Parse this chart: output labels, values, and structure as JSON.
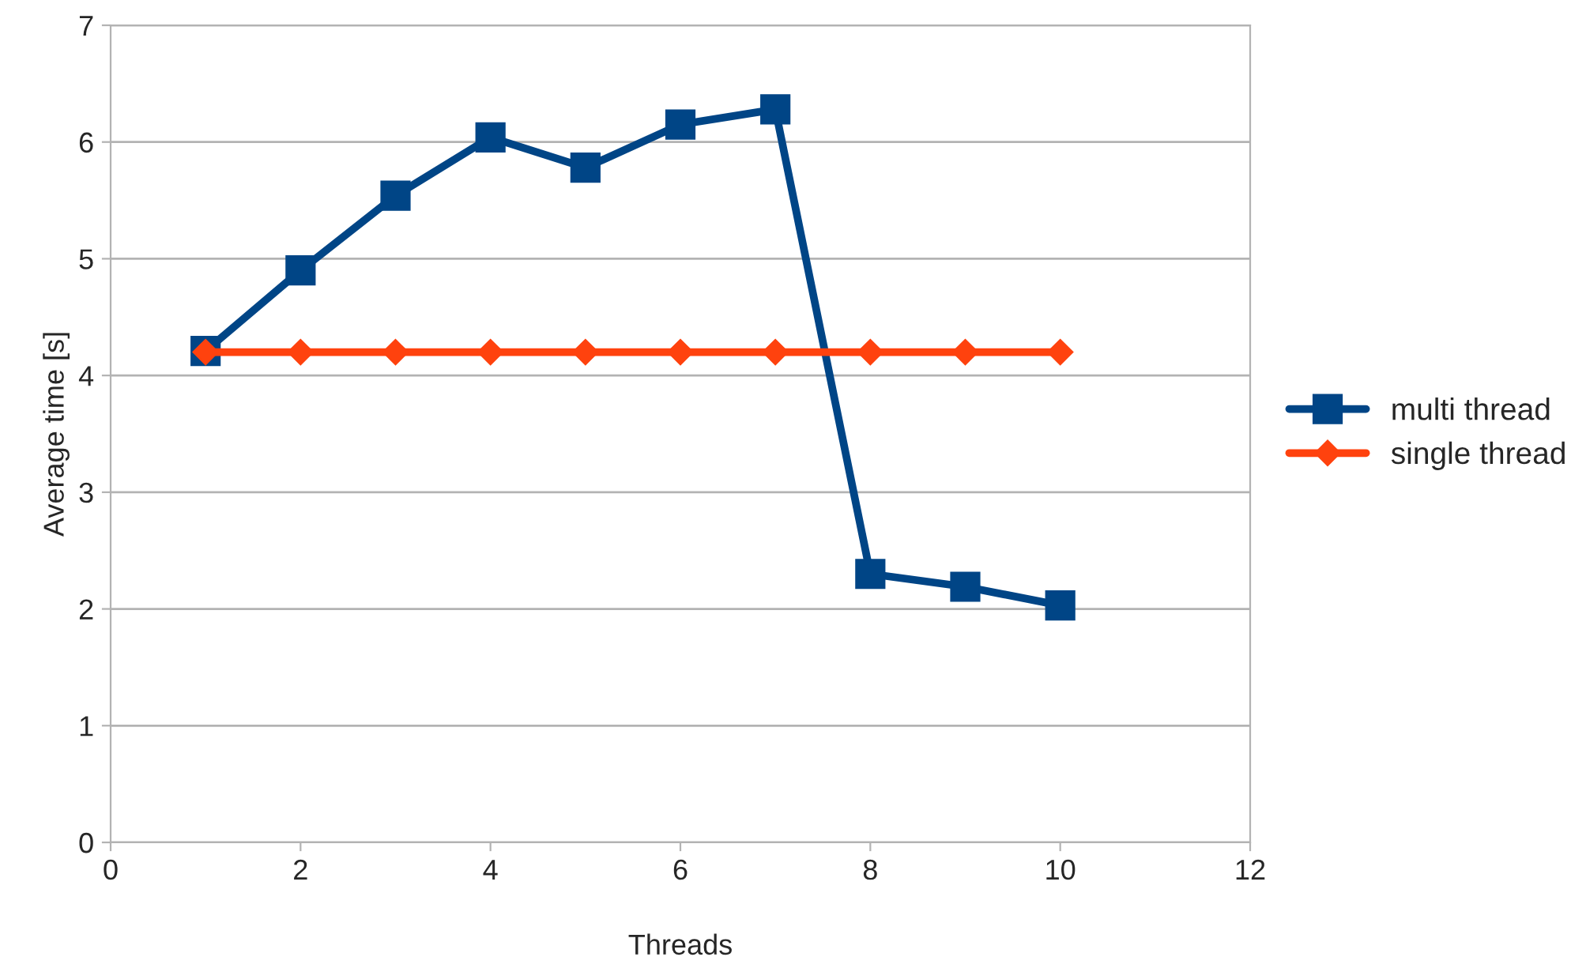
{
  "chart_data": {
    "type": "line",
    "xlabel": "Threads",
    "ylabel": "Average time [s]",
    "x": [
      1,
      2,
      3,
      4,
      5,
      6,
      7,
      8,
      9,
      10
    ],
    "series": [
      {
        "name": "multi thread",
        "color": "#004586",
        "marker": "square",
        "values": [
          4.21,
          4.9,
          5.54,
          6.04,
          5.78,
          6.15,
          6.28,
          2.3,
          2.19,
          2.03
        ]
      },
      {
        "name": "single thread",
        "color": "#ff420e",
        "marker": "diamond",
        "values": [
          4.2,
          4.2,
          4.2,
          4.2,
          4.2,
          4.2,
          4.2,
          4.2,
          4.2,
          4.2
        ]
      }
    ],
    "xlim": [
      0,
      12
    ],
    "xticks": [
      0,
      2,
      4,
      6,
      8,
      10,
      12
    ],
    "ylim": [
      0,
      7
    ],
    "yticks": [
      0,
      1,
      2,
      3,
      4,
      5,
      6,
      7
    ],
    "grid": "y",
    "legend": "right",
    "line_style": "solid"
  }
}
